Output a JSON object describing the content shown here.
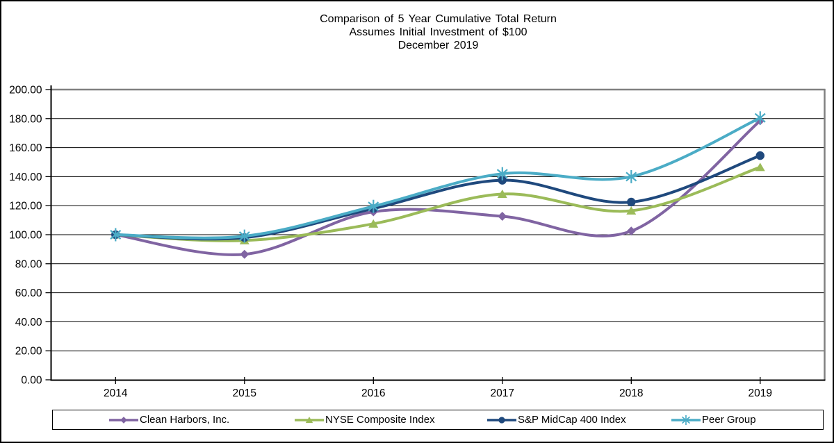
{
  "title": {
    "line1": "Comparison of 5 Year Cumulative Total Return",
    "line2": "Assumes Initial Investment of $100",
    "line3": "December 2019"
  },
  "chart_data": {
    "type": "line",
    "smooth": true,
    "title": "Comparison of 5 Year Cumulative Total Return",
    "subtitle": "Assumes Initial Investment of $100",
    "date_label": "December 2019",
    "categories": [
      "2014",
      "2015",
      "2016",
      "2017",
      "2018",
      "2019"
    ],
    "series": [
      {
        "name": "Clean Harbors, Inc.",
        "color": "#8064A2",
        "marker": "diamond",
        "values": [
          100.0,
          86.5,
          115.8,
          112.7,
          102.5,
          178.5
        ]
      },
      {
        "name": "NYSE Composite Index",
        "color": "#9BBB59",
        "marker": "triangle",
        "values": [
          100.0,
          96.0,
          107.5,
          128.0,
          116.5,
          146.5
        ]
      },
      {
        "name": "S&P MidCap 400 Index",
        "color": "#1F497D",
        "marker": "circle",
        "values": [
          100.0,
          98.0,
          118.0,
          137.5,
          122.5,
          154.5
        ]
      },
      {
        "name": "Peer Group",
        "color": "#4BACC6",
        "marker": "asterisk",
        "values": [
          100.0,
          99.0,
          119.5,
          142.0,
          140.0,
          180.5
        ]
      }
    ],
    "ylim": [
      0,
      200
    ],
    "y_tick_step": 20,
    "y_tick_labels": [
      "0.00",
      "20.00",
      "40.00",
      "60.00",
      "80.00",
      "100.00",
      "120.00",
      "140.00",
      "160.00",
      "180.00",
      "200.00"
    ],
    "grid": "horizontal",
    "gridline_color": "#000000",
    "plot_frame_color": "#808080",
    "axis_color": "#000000",
    "legend_position": "bottom"
  }
}
